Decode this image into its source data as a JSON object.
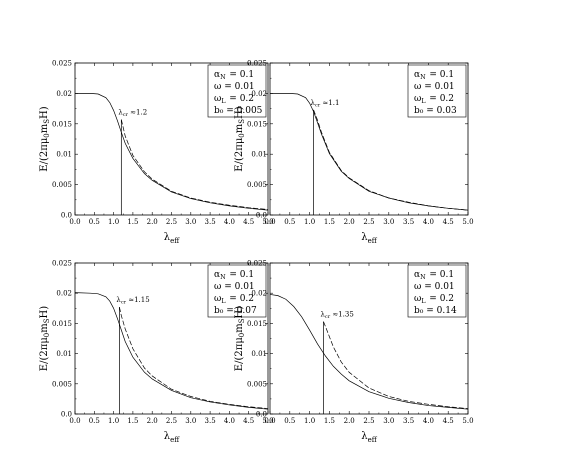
{
  "chart_data": [
    {
      "type": "line",
      "ylabel": "E/(2πμ₀m_SH)",
      "xlabel": "λ_eff",
      "xlim": [
        0.0,
        5.0
      ],
      "ylim": [
        0.0,
        0.025
      ],
      "xticks": [
        "0.0",
        "0.5",
        "1.0",
        "1.5",
        "2.0",
        "2.5",
        "3.0",
        "3.5",
        "4.0",
        "4.5",
        "5.0"
      ],
      "yticks": [
        "0.0",
        "0.005",
        "0.01",
        "0.015",
        "0.02",
        "0.025"
      ],
      "params": [
        "α_N = 0.1",
        "ω = 0.01",
        "ω_L = 0.2",
        "b₀ = 0.005"
      ],
      "annotation": "λ_cr ≈1.2",
      "lambda_cr": 1.2,
      "peak": 0.0157,
      "series": [
        {
          "style": "solid",
          "x": [
            0,
            0.4,
            0.6,
            0.8,
            0.9,
            1.0,
            1.1,
            1.2,
            1.3,
            1.5,
            1.8,
            2.0,
            2.5,
            3.0,
            3.5,
            4.0,
            4.5,
            5.0
          ],
          "y": [
            0.02,
            0.02,
            0.0199,
            0.0193,
            0.0185,
            0.0172,
            0.0155,
            0.0136,
            0.0118,
            0.0093,
            0.0068,
            0.0057,
            0.0038,
            0.0027,
            0.002,
            0.0015,
            0.0011,
            0.0008
          ]
        },
        {
          "style": "dashed",
          "x": [
            1.2,
            1.3,
            1.5,
            1.8,
            2.0,
            2.5,
            3.0,
            3.5,
            4.0,
            4.5,
            5.0
          ],
          "y": [
            0.0157,
            0.013,
            0.0098,
            0.0071,
            0.0059,
            0.0039,
            0.0028,
            0.0021,
            0.0016,
            0.0012,
            0.0009
          ]
        }
      ]
    },
    {
      "type": "line",
      "ylabel": "E/(2πμ₀m_SH)",
      "xlabel": "λ_eff",
      "xlim": [
        0.0,
        5.0
      ],
      "ylim": [
        0.0,
        0.025
      ],
      "xticks": [
        "0.0",
        "0.5",
        "1.0",
        "1.5",
        "2.0",
        "2.5",
        "3.0",
        "3.5",
        "4.0",
        "4.5",
        "5.0"
      ],
      "yticks": [
        "0.0",
        "0.005",
        "0.01",
        "0.015",
        "0.02",
        "0.025"
      ],
      "params": [
        "α_N = 0.1",
        "ω = 0.01",
        "ω_L = 0.2",
        "b₀ = 0.03"
      ],
      "annotation": "λ_cr ≈1.1",
      "lambda_cr": 1.1,
      "peak": 0.0173,
      "series": [
        {
          "style": "solid",
          "x": [
            0,
            0.5,
            0.7,
            0.9,
            1.0,
            1.1,
            1.2,
            1.3,
            1.5,
            1.8,
            2.0,
            2.5,
            3.0,
            3.5,
            4.0,
            4.5,
            5.0
          ],
          "y": [
            0.02,
            0.02,
            0.0199,
            0.0193,
            0.0184,
            0.017,
            0.0152,
            0.0133,
            0.0101,
            0.0072,
            0.006,
            0.0039,
            0.0028,
            0.002,
            0.0015,
            0.0011,
            0.0008
          ]
        },
        {
          "style": "dashed",
          "x": [
            1.1,
            1.2,
            1.3,
            1.5,
            1.8,
            2.0,
            2.5,
            3.0,
            3.5,
            4.0,
            4.5,
            5.0
          ],
          "y": [
            0.0173,
            0.0156,
            0.0136,
            0.0103,
            0.0073,
            0.0061,
            0.004,
            0.0028,
            0.0021,
            0.0015,
            0.0011,
            0.0008
          ]
        }
      ]
    },
    {
      "type": "line",
      "ylabel": "E/(2πμ₀m_SH)",
      "xlabel": "λ_eff",
      "xlim": [
        0.0,
        5.0
      ],
      "ylim": [
        0.0,
        0.025
      ],
      "xticks": [
        "0.0",
        "0.5",
        "1.0",
        "1.5",
        "2.0",
        "2.5",
        "3.0",
        "3.5",
        "4.0",
        "4.5",
        "5.0"
      ],
      "yticks": [
        "0.0",
        "0.005",
        "0.01",
        "0.015",
        "0.02",
        "0.025"
      ],
      "params": [
        "α_N = 0.1",
        "ω = 0.01",
        "ω_L = 0.2",
        "b₀ = 0.07"
      ],
      "annotation": "λ_cr ≈1.15",
      "lambda_cr": 1.15,
      "peak": 0.0177,
      "series": [
        {
          "style": "solid",
          "x": [
            0,
            0.4,
            0.6,
            0.8,
            0.9,
            1.0,
            1.1,
            1.2,
            1.3,
            1.5,
            1.8,
            2.0,
            2.5,
            3.0,
            3.5,
            4.0,
            4.5,
            5.0
          ],
          "y": [
            0.0201,
            0.02,
            0.0199,
            0.0194,
            0.0187,
            0.0175,
            0.0158,
            0.0139,
            0.012,
            0.0094,
            0.0069,
            0.0058,
            0.0039,
            0.0027,
            0.002,
            0.0015,
            0.0011,
            0.0008
          ]
        },
        {
          "style": "dashed",
          "x": [
            1.15,
            1.2,
            1.3,
            1.5,
            1.8,
            2.0,
            2.5,
            3.0,
            3.5,
            4.0,
            4.5,
            5.0
          ],
          "y": [
            0.0177,
            0.0163,
            0.0141,
            0.0108,
            0.0076,
            0.0063,
            0.0041,
            0.0029,
            0.0021,
            0.0016,
            0.0012,
            0.0009
          ]
        }
      ]
    },
    {
      "type": "line",
      "ylabel": "E/(2πμ₀m_SH)",
      "xlabel": "λ_eff",
      "xlim": [
        0.0,
        5.0
      ],
      "ylim": [
        0.0,
        0.025
      ],
      "xticks": [
        "0.0",
        "0.5",
        "1.0",
        "1.5",
        "2.0",
        "2.5",
        "3.0",
        "3.5",
        "4.0",
        "4.5",
        "5.0"
      ],
      "yticks": [
        "0.0",
        "0.005",
        "0.01",
        "0.015",
        "0.02",
        "0.025"
      ],
      "params": [
        "α_N = 0.1",
        "ω = 0.01",
        "ω_L = 0.2",
        "b₀ = 0.14"
      ],
      "annotation": "λ_cr ≈1.35",
      "lambda_cr": 1.35,
      "peak": 0.0153,
      "series": [
        {
          "style": "solid",
          "x": [
            0,
            0.2,
            0.4,
            0.6,
            0.8,
            1.0,
            1.2,
            1.4,
            1.6,
            1.8,
            2.0,
            2.5,
            3.0,
            3.5,
            4.0,
            4.5,
            5.0
          ],
          "y": [
            0.0198,
            0.0196,
            0.019,
            0.0178,
            0.0161,
            0.0139,
            0.0116,
            0.0096,
            0.0079,
            0.0066,
            0.0055,
            0.0037,
            0.0026,
            0.0019,
            0.0014,
            0.0011,
            0.0008
          ]
        },
        {
          "style": "dashed",
          "x": [
            1.35,
            1.4,
            1.5,
            1.6,
            1.8,
            2.0,
            2.5,
            3.0,
            3.5,
            4.0,
            4.5,
            5.0
          ],
          "y": [
            0.0153,
            0.0145,
            0.0128,
            0.0111,
            0.0086,
            0.0069,
            0.0043,
            0.0029,
            0.0021,
            0.0016,
            0.0012,
            0.0009
          ]
        }
      ]
    }
  ]
}
